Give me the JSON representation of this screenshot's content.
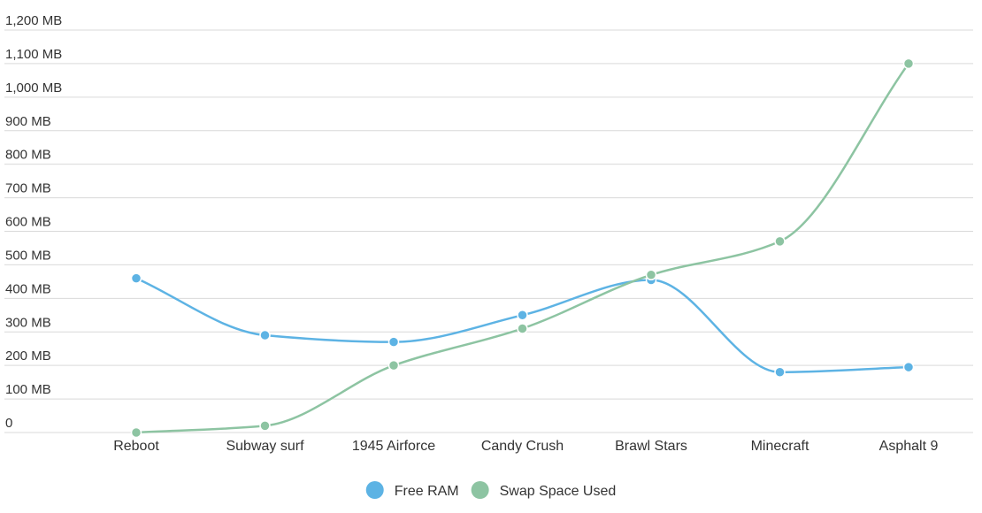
{
  "chart_data": {
    "type": "line",
    "curve": "smooth",
    "categories": [
      "Reboot",
      "Subway surf",
      "1945 Airforce",
      "Candy Crush",
      "Brawl Stars",
      "Minecraft",
      "Asphalt 9"
    ],
    "series": [
      {
        "name": "Free RAM",
        "color": "#5DB3E4",
        "values": [
          460,
          290,
          270,
          350,
          455,
          180,
          195
        ]
      },
      {
        "name": "Swap Space Used",
        "color": "#8DC4A2",
        "values": [
          0,
          20,
          200,
          310,
          470,
          570,
          1100
        ]
      }
    ],
    "y_ticks": [
      {
        "value": 0,
        "label": "0"
      },
      {
        "value": 100,
        "label": "100 MB"
      },
      {
        "value": 200,
        "label": "200 MB"
      },
      {
        "value": 300,
        "label": "300 MB"
      },
      {
        "value": 400,
        "label": "400 MB"
      },
      {
        "value": 500,
        "label": "500 MB"
      },
      {
        "value": 600,
        "label": "600 MB"
      },
      {
        "value": 700,
        "label": "700 MB"
      },
      {
        "value": 800,
        "label": "800 MB"
      },
      {
        "value": 900,
        "label": "900 MB"
      },
      {
        "value": 1000,
        "label": "1,000 MB"
      },
      {
        "value": 1100,
        "label": "1,100 MB"
      },
      {
        "value": 1200,
        "label": "1,200 MB"
      }
    ],
    "ylim": [
      0,
      1200
    ],
    "grid": true,
    "legend_position": "bottom-center",
    "title": "",
    "xlabel": "",
    "ylabel": ""
  }
}
